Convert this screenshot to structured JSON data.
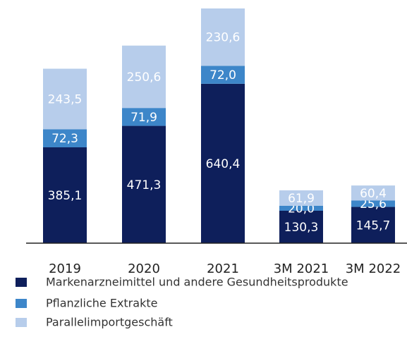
{
  "chart_data": {
    "type": "stacked_bar",
    "categories": [
      "2019",
      "2020",
      "2021",
      "3M 2021",
      "3M 2022"
    ],
    "series": [
      {
        "name": "Markenarzneimittel und andere Gesundheitsprodukte",
        "color": "#0e1f5b",
        "values": [
          385.1,
          471.3,
          640.4,
          130.3,
          145.7
        ],
        "value_labels": [
          "385,1",
          "471,3",
          "640,4",
          "130,3",
          "145,7"
        ]
      },
      {
        "name": "Pflanzliche Extrakte",
        "color": "#3d86c9",
        "values": [
          72.3,
          71.9,
          72.0,
          20.0,
          25.6
        ],
        "value_labels": [
          "72,3",
          "71,9",
          "72,0",
          "20,0",
          "25,6"
        ]
      },
      {
        "name": "Parallelimportgeschäft",
        "color": "#b7cdeb",
        "values": [
          243.5,
          250.6,
          230.6,
          61.9,
          60.4
        ],
        "value_labels": [
          "243,5",
          "250,6",
          "230,6",
          "61,9",
          "60,4"
        ]
      }
    ]
  }
}
